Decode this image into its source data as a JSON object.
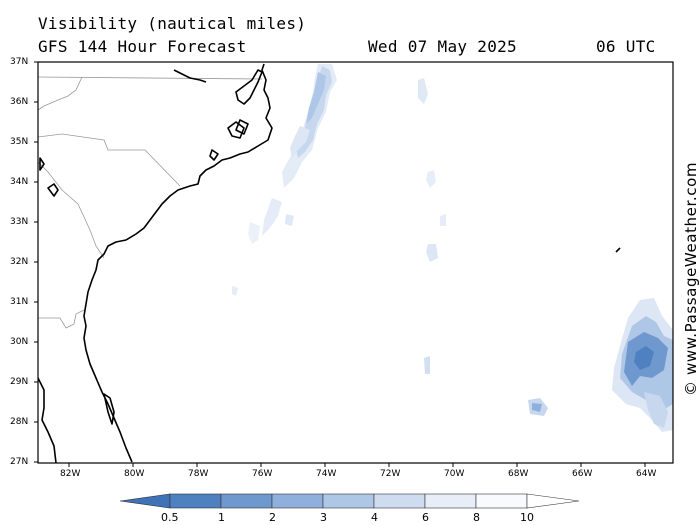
{
  "header": {
    "title": "Visibility (nautical miles)",
    "subtitle": "GFS 144 Hour Forecast",
    "date": "Wed 07 May 2025",
    "time": "06 UTC"
  },
  "credit": "© www.PassageWeather.com",
  "map": {
    "latitude_labels": [
      "37N",
      "36N",
      "35N",
      "34N",
      "33N",
      "32N",
      "31N",
      "30N",
      "29N",
      "28N",
      "27N"
    ],
    "longitude_labels": [
      "82W",
      "80W",
      "78W",
      "76W",
      "74W",
      "72W",
      "70W",
      "68W",
      "66W",
      "64W"
    ],
    "colors": {
      "land_outline": "#000000",
      "state_border": "#9a9a9a",
      "frame": "#000000"
    }
  },
  "legend": {
    "labels": [
      "0.5",
      "1",
      "2",
      "3",
      "4",
      "6",
      "8",
      "10"
    ],
    "colors": [
      "#3f73b8",
      "#4f80c0",
      "#6f98cf",
      "#8fb0dc",
      "#afc7e7",
      "#cfdcf0",
      "#e7eef8",
      "#f8fafd"
    ]
  }
}
